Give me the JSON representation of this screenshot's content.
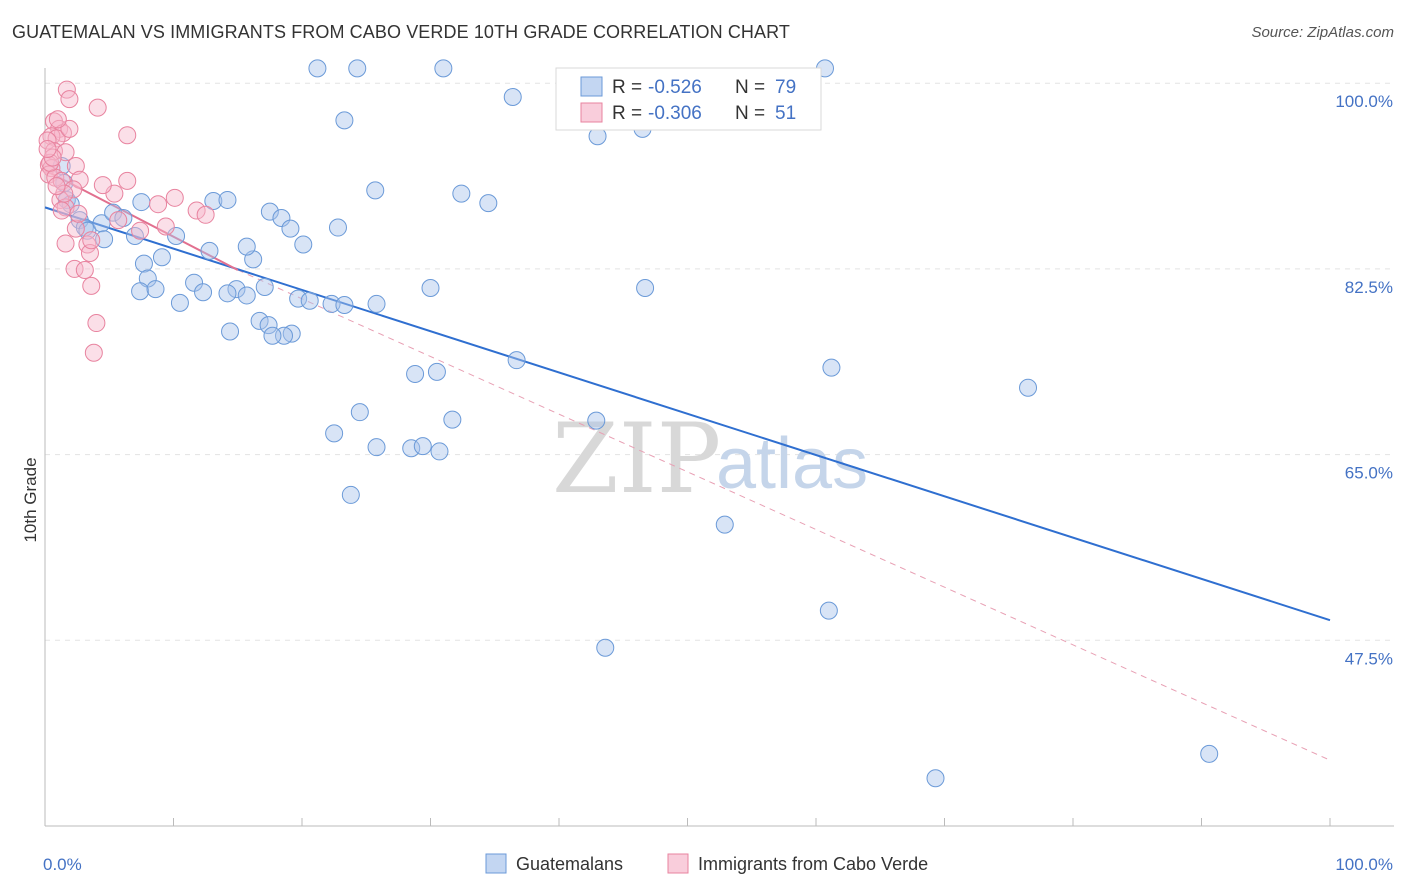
{
  "title": "GUATEMALAN VS IMMIGRANTS FROM CABO VERDE 10TH GRADE CORRELATION CHART",
  "source": "Source: ZipAtlas.com",
  "watermark": {
    "zip": "ZIP",
    "atlas": "atlas"
  },
  "chart_data": {
    "type": "scatter",
    "ylabel": "10th Grade",
    "xlim": [
      0,
      100
    ],
    "ylim": [
      30,
      102
    ],
    "x_tick_labels": [
      {
        "value": 0,
        "label": "0.0%"
      },
      {
        "value": 100,
        "label": "100.0%"
      }
    ],
    "y_tick_labels": [
      {
        "value": 100,
        "label": "100.0%"
      },
      {
        "value": 82.5,
        "label": "82.5%"
      },
      {
        "value": 65,
        "label": "65.0%"
      },
      {
        "value": 47.5,
        "label": "47.5%"
      }
    ],
    "legend_stats": [
      {
        "r_label": "R =",
        "r": "-0.526",
        "n_label": "N =",
        "n": "79",
        "color": "#a9c4ec"
      },
      {
        "r_label": "R =",
        "r": "-0.306",
        "n_label": "N =",
        "n": "51",
        "color": "#f6b8cc"
      }
    ],
    "series": [
      {
        "name": "Guatemalans",
        "color": "#a9c4ec",
        "stroke": "#6b9ad8",
        "trend": {
          "x": [
            0,
            100
          ],
          "y": [
            88.3,
            49.4
          ],
          "color": "#2f6fd0",
          "dashed": false
        },
        "points": [
          [
            21.2,
            101.4
          ],
          [
            24.3,
            101.4
          ],
          [
            31.0,
            101.4
          ],
          [
            60.7,
            101.4
          ],
          [
            36.4,
            98.7
          ],
          [
            23.3,
            96.5
          ],
          [
            43.0,
            95.0
          ],
          [
            46.5,
            95.7
          ],
          [
            1.3,
            92.2
          ],
          [
            1.5,
            90.6
          ],
          [
            1.7,
            89.0
          ],
          [
            2.0,
            88.6
          ],
          [
            2.7,
            87.1
          ],
          [
            3.1,
            86.4
          ],
          [
            3.3,
            86.1
          ],
          [
            4.4,
            86.8
          ],
          [
            4.6,
            85.3
          ],
          [
            5.3,
            87.8
          ],
          [
            6.1,
            87.3
          ],
          [
            7.0,
            85.6
          ],
          [
            7.5,
            88.8
          ],
          [
            10.2,
            85.6
          ],
          [
            12.8,
            84.2
          ],
          [
            16.2,
            83.4
          ],
          [
            15.7,
            84.6
          ],
          [
            17.5,
            87.9
          ],
          [
            18.4,
            87.3
          ],
          [
            19.1,
            86.3
          ],
          [
            20.1,
            84.8
          ],
          [
            22.8,
            86.4
          ],
          [
            25.7,
            89.9
          ],
          [
            32.4,
            89.6
          ],
          [
            34.5,
            88.7
          ],
          [
            13.1,
            88.9
          ],
          [
            14.2,
            89.0
          ],
          [
            9.1,
            83.6
          ],
          [
            7.7,
            83.0
          ],
          [
            11.6,
            81.2
          ],
          [
            8.0,
            81.6
          ],
          [
            14.9,
            80.6
          ],
          [
            15.7,
            80.0
          ],
          [
            10.5,
            79.3
          ],
          [
            12.3,
            80.3
          ],
          [
            14.2,
            80.2
          ],
          [
            17.1,
            80.8
          ],
          [
            19.7,
            79.7
          ],
          [
            20.6,
            79.5
          ],
          [
            22.3,
            79.2
          ],
          [
            23.3,
            79.1
          ],
          [
            19.2,
            76.4
          ],
          [
            18.6,
            76.2
          ],
          [
            16.7,
            77.6
          ],
          [
            17.4,
            77.2
          ],
          [
            14.4,
            76.6
          ],
          [
            17.7,
            76.2
          ],
          [
            7.4,
            80.4
          ],
          [
            8.6,
            80.6
          ],
          [
            25.8,
            79.2
          ],
          [
            30.0,
            80.7
          ],
          [
            46.7,
            80.7
          ],
          [
            36.7,
            73.9
          ],
          [
            28.8,
            72.6
          ],
          [
            30.5,
            72.8
          ],
          [
            24.5,
            69.0
          ],
          [
            22.5,
            67.0
          ],
          [
            31.7,
            68.3
          ],
          [
            42.9,
            68.2
          ],
          [
            25.8,
            65.7
          ],
          [
            28.5,
            65.6
          ],
          [
            30.7,
            65.3
          ],
          [
            29.4,
            65.8
          ],
          [
            23.8,
            61.2
          ],
          [
            61.2,
            73.2
          ],
          [
            76.5,
            71.3
          ],
          [
            52.9,
            58.4
          ],
          [
            61.0,
            50.3
          ],
          [
            43.6,
            46.8
          ],
          [
            90.6,
            36.8
          ],
          [
            69.3,
            34.5
          ]
        ]
      },
      {
        "name": "Immigrants from Cabo Verde",
        "color": "#f6b8cc",
        "stroke": "#e8839f",
        "trend": {
          "x": [
            0,
            15
          ],
          "y": [
            91.8,
            82.4
          ],
          "color": "#e2708f",
          "dashed": false
        },
        "trend_ext": {
          "x": [
            15,
            100
          ],
          "y": [
            82.4,
            36.2
          ],
          "color": "#e8a0b4",
          "dashed": true
        },
        "points": [
          [
            1.7,
            99.4
          ],
          [
            1.9,
            98.5
          ],
          [
            4.1,
            97.7
          ],
          [
            0.7,
            96.4
          ],
          [
            1.1,
            95.7
          ],
          [
            1.4,
            95.3
          ],
          [
            0.5,
            95.0
          ],
          [
            0.9,
            94.8
          ],
          [
            6.4,
            95.1
          ],
          [
            0.2,
            94.6
          ],
          [
            0.7,
            93.6
          ],
          [
            1.6,
            93.5
          ],
          [
            0.3,
            92.3
          ],
          [
            0.5,
            92.0
          ],
          [
            2.4,
            92.2
          ],
          [
            0.3,
            91.4
          ],
          [
            0.8,
            91.1
          ],
          [
            1.3,
            90.8
          ],
          [
            2.7,
            90.9
          ],
          [
            2.2,
            90.0
          ],
          [
            6.4,
            90.8
          ],
          [
            5.4,
            89.6
          ],
          [
            10.1,
            89.2
          ],
          [
            1.2,
            89.0
          ],
          [
            1.6,
            88.3
          ],
          [
            8.8,
            88.6
          ],
          [
            11.8,
            88.0
          ],
          [
            12.5,
            87.6
          ],
          [
            2.4,
            86.3
          ],
          [
            7.4,
            86.1
          ],
          [
            9.4,
            86.5
          ],
          [
            1.6,
            84.9
          ],
          [
            3.3,
            84.8
          ],
          [
            3.5,
            84.0
          ],
          [
            3.6,
            85.2
          ],
          [
            2.3,
            82.5
          ],
          [
            3.1,
            82.4
          ],
          [
            3.6,
            80.9
          ],
          [
            4.0,
            77.4
          ],
          [
            3.8,
            74.6
          ],
          [
            1.5,
            89.6
          ],
          [
            0.9,
            90.3
          ],
          [
            0.4,
            92.5
          ],
          [
            1.9,
            95.7
          ],
          [
            1.0,
            96.6
          ],
          [
            0.6,
            93.0
          ],
          [
            2.6,
            87.7
          ],
          [
            4.5,
            90.4
          ],
          [
            0.2,
            93.8
          ],
          [
            1.3,
            88.0
          ],
          [
            5.7,
            87.1
          ]
        ]
      }
    ]
  }
}
